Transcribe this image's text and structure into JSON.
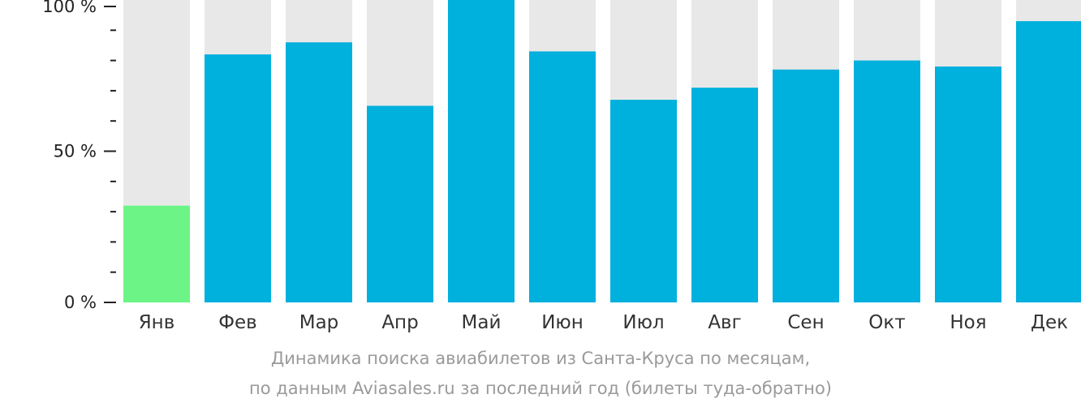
{
  "chart_data": {
    "type": "bar",
    "categories": [
      "Янв",
      "Фев",
      "Мар",
      "Апр",
      "Май",
      "Июн",
      "Июл",
      "Авг",
      "Сен",
      "Окт",
      "Ноя",
      "Дек"
    ],
    "values": [
      32,
      82,
      86,
      65,
      100,
      83,
      67,
      71,
      77,
      80,
      78,
      93
    ],
    "ylim": [
      0,
      100
    ],
    "yticks": [
      {
        "value": 100,
        "label": "100 %"
      },
      {
        "value": 50,
        "label": "50 %"
      },
      {
        "value": 0,
        "label": "0 %"
      }
    ],
    "minor_tick_step": 10,
    "colors": {
      "bar": "#00b0dd",
      "bar_min": "#6cf586",
      "track": "#e8e8e8",
      "axis": "#222222"
    },
    "highlight_min_category": "Янв"
  },
  "caption": {
    "line1": "Динамика поиска авиабилетов из Санта-Круса по месяцам,",
    "line2": "по данным Aviasales.ru за последний год (билеты туда-обратно)"
  }
}
